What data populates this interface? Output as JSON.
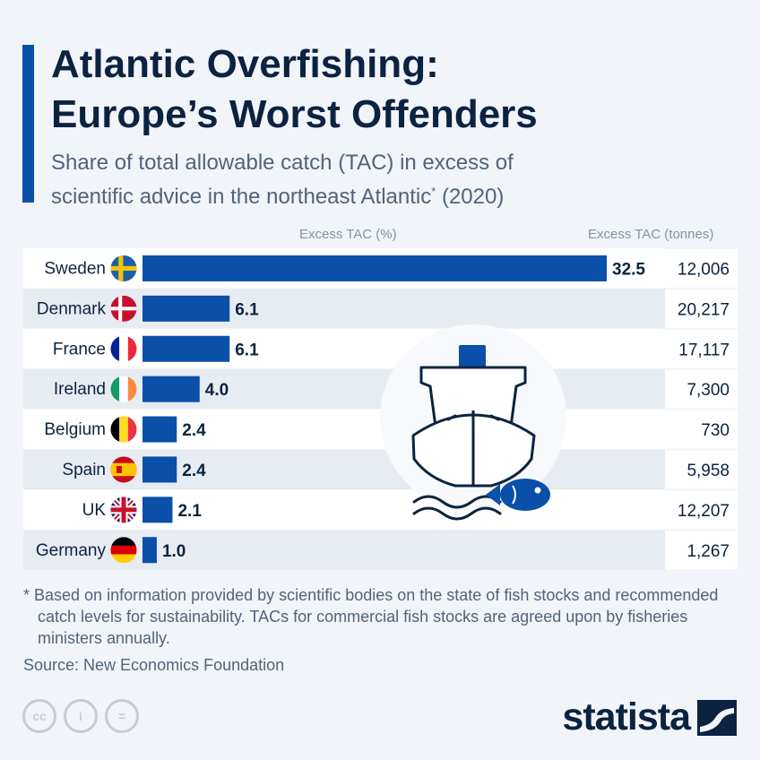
{
  "title_lines": [
    "Atlantic Overfishing:",
    "Europe’s Worst Offenders"
  ],
  "subtitle": {
    "line1": "Share of total allowable catch (TAC) in excess of",
    "line2": "scientific advice in the northeast Atlantic",
    "line2_mark": "*",
    "line2_end": " (2020)"
  },
  "column_headers": {
    "percent": "Excess TAC (%)",
    "tonnes": "Excess TAC (tonnes)"
  },
  "chart_data": {
    "type": "bar",
    "orientation": "horizontal",
    "categories": [
      "Sweden",
      "Denmark",
      "France",
      "Ireland",
      "Belgium",
      "Spain",
      "UK",
      "Germany"
    ],
    "values": [
      32.5,
      6.1,
      6.1,
      4.0,
      2.4,
      2.4,
      2.1,
      1.0
    ],
    "value_labels": [
      "32.5",
      "6.1",
      "6.1",
      "4.0",
      "2.4",
      "2.4",
      "2.1",
      "1.0"
    ],
    "tonnes": [
      "12,006",
      "20,217",
      "17,117",
      "7,300",
      "730",
      "5,958",
      "12,207",
      "1,267"
    ],
    "flags": [
      "flag-sweden",
      "flag-denmark",
      "flag-france",
      "flag-ireland",
      "flag-belgium",
      "flag-spain",
      "flag-uk",
      "flag-germany"
    ],
    "xlim": [
      0,
      32.5
    ],
    "bar_color": "#0a4fa8"
  },
  "illustration": "ship-and-fish-icon",
  "footnote": "* Based on information provided by scientific bodies on the state of fish stocks and recommended catch levels for sustainability. TACs for commercial fish stocks are agreed upon by fisheries ministers annually.",
  "source": "Source: New Economics Foundation",
  "license_icons": [
    "cc-icon",
    "by-icon",
    "nd-icon"
  ],
  "license_glyphs": [
    "cc",
    "i",
    "="
  ],
  "brand": {
    "name": "statista",
    "color": "#0b2340",
    "accent": "#0a4fa8"
  }
}
